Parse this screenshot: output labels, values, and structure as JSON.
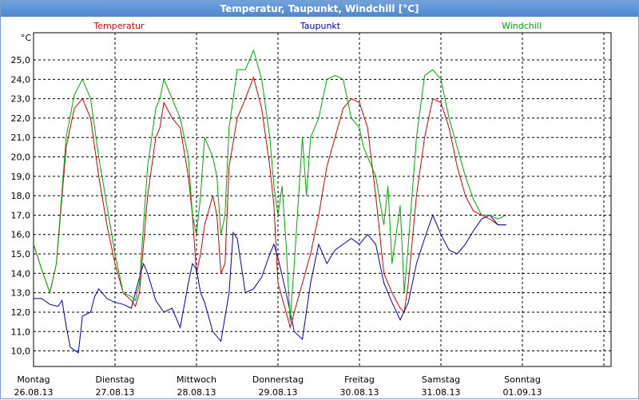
{
  "window": {
    "title": "Temperatur, Taupunkt, Windchill [°C]"
  },
  "chart_data": {
    "type": "line",
    "ylabel": "°C",
    "ylim": [
      9.2,
      26.4
    ],
    "yticks": [
      "10,0",
      "11,0",
      "12,0",
      "13,0",
      "14,0",
      "15,0",
      "16,0",
      "17,0",
      "18,0",
      "19,0",
      "20,0",
      "21,0",
      "22,0",
      "23,0",
      "24,0",
      "25,0"
    ],
    "ytick_values": [
      10,
      11,
      12,
      13,
      14,
      15,
      16,
      17,
      18,
      19,
      20,
      21,
      22,
      23,
      24,
      25
    ],
    "xlim": [
      0,
      7
    ],
    "xticks": [
      {
        "day": "Montag",
        "date": "26.08.13",
        "x": 0
      },
      {
        "day": "Dienstag",
        "date": "27.08.13",
        "x": 1
      },
      {
        "day": "Mittwoch",
        "date": "28.08.13",
        "x": 2
      },
      {
        "day": "Donnerstag",
        "date": "29.08.13",
        "x": 3
      },
      {
        "day": "Freitag",
        "date": "30.08.13",
        "x": 4
      },
      {
        "day": "Samstag",
        "date": "31.08.13",
        "x": 5
      },
      {
        "day": "Sonntag",
        "date": "01.09.13",
        "x": 6
      }
    ],
    "grid": true,
    "series": [
      {
        "name": "Temperatur",
        "color": "#d40000",
        "points": [
          [
            0,
            15.5
          ],
          [
            0.1,
            14.2
          ],
          [
            0.2,
            13.0
          ],
          [
            0.28,
            14.5
          ],
          [
            0.4,
            20.5
          ],
          [
            0.5,
            22.5
          ],
          [
            0.6,
            23.0
          ],
          [
            0.7,
            22.0
          ],
          [
            0.8,
            19.0
          ],
          [
            0.9,
            16.5
          ],
          [
            1.0,
            14.5
          ],
          [
            1.1,
            13.0
          ],
          [
            1.2,
            12.6
          ],
          [
            1.25,
            12.3
          ],
          [
            1.3,
            13.0
          ],
          [
            1.4,
            18.0
          ],
          [
            1.5,
            21.0
          ],
          [
            1.55,
            21.5
          ],
          [
            1.6,
            22.8
          ],
          [
            1.7,
            22.0
          ],
          [
            1.8,
            21.5
          ],
          [
            1.9,
            19.0
          ],
          [
            1.95,
            17.0
          ],
          [
            2.0,
            14.0
          ],
          [
            2.05,
            15.0
          ],
          [
            2.1,
            16.5
          ],
          [
            2.2,
            18.0
          ],
          [
            2.25,
            17.0
          ],
          [
            2.3,
            14.0
          ],
          [
            2.35,
            14.5
          ],
          [
            2.4,
            19.5
          ],
          [
            2.5,
            22.0
          ],
          [
            2.6,
            23.0
          ],
          [
            2.7,
            24.1
          ],
          [
            2.8,
            22.5
          ],
          [
            2.9,
            19.5
          ],
          [
            2.95,
            17.5
          ],
          [
            3.0,
            13.5
          ],
          [
            3.1,
            12.0
          ],
          [
            3.15,
            11.2
          ],
          [
            3.2,
            12.0
          ],
          [
            3.3,
            13.5
          ],
          [
            3.4,
            15.0
          ],
          [
            3.5,
            17.0
          ],
          [
            3.6,
            19.5
          ],
          [
            3.7,
            21.0
          ],
          [
            3.8,
            22.5
          ],
          [
            3.9,
            23.0
          ],
          [
            4.0,
            22.8
          ],
          [
            4.1,
            21.5
          ],
          [
            4.2,
            18.0
          ],
          [
            4.3,
            14.0
          ],
          [
            4.4,
            13.0
          ],
          [
            4.5,
            12.2
          ],
          [
            4.55,
            12.0
          ],
          [
            4.6,
            13.5
          ],
          [
            4.7,
            18.0
          ],
          [
            4.8,
            21.0
          ],
          [
            4.9,
            23.0
          ],
          [
            5.0,
            22.8
          ],
          [
            5.1,
            21.5
          ],
          [
            5.2,
            19.5
          ],
          [
            5.3,
            18.0
          ],
          [
            5.4,
            17.2
          ],
          [
            5.5,
            17.0
          ],
          [
            5.6,
            16.8
          ],
          [
            5.7,
            16.5
          ],
          [
            5.8,
            16.5
          ]
        ]
      },
      {
        "name": "Taupunkt",
        "color": "#0000aa",
        "points": [
          [
            0,
            12.7
          ],
          [
            0.1,
            12.7
          ],
          [
            0.2,
            12.4
          ],
          [
            0.3,
            12.3
          ],
          [
            0.35,
            12.6
          ],
          [
            0.4,
            11.3
          ],
          [
            0.45,
            10.2
          ],
          [
            0.55,
            9.9
          ],
          [
            0.6,
            11.8
          ],
          [
            0.7,
            12.0
          ],
          [
            0.75,
            12.8
          ],
          [
            0.8,
            13.2
          ],
          [
            0.9,
            12.7
          ],
          [
            1.0,
            12.5
          ],
          [
            1.1,
            12.4
          ],
          [
            1.2,
            12.2
          ],
          [
            1.3,
            13.8
          ],
          [
            1.35,
            14.5
          ],
          [
            1.4,
            14.0
          ],
          [
            1.5,
            12.6
          ],
          [
            1.6,
            12.0
          ],
          [
            1.7,
            12.2
          ],
          [
            1.8,
            11.2
          ],
          [
            1.9,
            13.5
          ],
          [
            1.95,
            14.5
          ],
          [
            2.0,
            14.2
          ],
          [
            2.05,
            13.0
          ],
          [
            2.1,
            12.5
          ],
          [
            2.2,
            11.0
          ],
          [
            2.3,
            10.5
          ],
          [
            2.4,
            13.0
          ],
          [
            2.45,
            16.1
          ],
          [
            2.5,
            15.8
          ],
          [
            2.6,
            13.0
          ],
          [
            2.7,
            13.2
          ],
          [
            2.8,
            13.8
          ],
          [
            2.9,
            15.0
          ],
          [
            2.95,
            15.5
          ],
          [
            3.0,
            14.8
          ],
          [
            3.1,
            13.0
          ],
          [
            3.2,
            11.0
          ],
          [
            3.3,
            10.6
          ],
          [
            3.4,
            13.5
          ],
          [
            3.5,
            15.5
          ],
          [
            3.6,
            14.5
          ],
          [
            3.7,
            15.2
          ],
          [
            3.8,
            15.5
          ],
          [
            3.9,
            15.8
          ],
          [
            4.0,
            15.5
          ],
          [
            4.1,
            16.0
          ],
          [
            4.2,
            15.5
          ],
          [
            4.3,
            13.5
          ],
          [
            4.4,
            12.5
          ],
          [
            4.5,
            11.6
          ],
          [
            4.6,
            12.5
          ],
          [
            4.7,
            14.5
          ],
          [
            4.8,
            15.8
          ],
          [
            4.9,
            17.0
          ],
          [
            5.0,
            16.0
          ],
          [
            5.1,
            15.2
          ],
          [
            5.2,
            15.0
          ],
          [
            5.3,
            15.5
          ],
          [
            5.4,
            16.2
          ],
          [
            5.5,
            16.8
          ],
          [
            5.6,
            17.0
          ],
          [
            5.7,
            16.5
          ],
          [
            5.8,
            16.5
          ]
        ]
      },
      {
        "name": "Windchill",
        "color": "#00aa00",
        "points": [
          [
            0,
            15.5
          ],
          [
            0.1,
            14.2
          ],
          [
            0.2,
            13.0
          ],
          [
            0.28,
            14.5
          ],
          [
            0.4,
            21.0
          ],
          [
            0.5,
            23.2
          ],
          [
            0.6,
            24.0
          ],
          [
            0.7,
            23.0
          ],
          [
            0.8,
            20.0
          ],
          [
            0.9,
            17.5
          ],
          [
            1.0,
            15.0
          ],
          [
            1.1,
            13.0
          ],
          [
            1.2,
            12.8
          ],
          [
            1.25,
            12.6
          ],
          [
            1.3,
            13.5
          ],
          [
            1.4,
            19.5
          ],
          [
            1.5,
            22.5
          ],
          [
            1.55,
            23.0
          ],
          [
            1.6,
            24.0
          ],
          [
            1.7,
            23.0
          ],
          [
            1.8,
            22.0
          ],
          [
            1.9,
            20.0
          ],
          [
            1.95,
            17.0
          ],
          [
            2.0,
            16.0
          ],
          [
            2.05,
            18.0
          ],
          [
            2.1,
            21.0
          ],
          [
            2.2,
            20.0
          ],
          [
            2.25,
            19.0
          ],
          [
            2.3,
            16.0
          ],
          [
            2.35,
            17.0
          ],
          [
            2.4,
            21.5
          ],
          [
            2.5,
            24.5
          ],
          [
            2.6,
            24.5
          ],
          [
            2.7,
            25.5
          ],
          [
            2.8,
            24.0
          ],
          [
            2.9,
            21.0
          ],
          [
            2.95,
            18.5
          ],
          [
            3.0,
            17.0
          ],
          [
            3.05,
            18.5
          ],
          [
            3.1,
            15.5
          ],
          [
            3.15,
            11.5
          ],
          [
            3.2,
            14.5
          ],
          [
            3.3,
            21.0
          ],
          [
            3.35,
            18.0
          ],
          [
            3.4,
            21.0
          ],
          [
            3.5,
            22.0
          ],
          [
            3.6,
            24.0
          ],
          [
            3.7,
            24.2
          ],
          [
            3.8,
            24.0
          ],
          [
            3.9,
            22.0
          ],
          [
            4.0,
            21.5
          ],
          [
            4.05,
            20.5
          ],
          [
            4.1,
            20.0
          ],
          [
            4.2,
            19.0
          ],
          [
            4.3,
            16.5
          ],
          [
            4.35,
            18.5
          ],
          [
            4.4,
            14.5
          ],
          [
            4.5,
            17.5
          ],
          [
            4.55,
            13.0
          ],
          [
            4.6,
            15.5
          ],
          [
            4.7,
            21.0
          ],
          [
            4.8,
            24.2
          ],
          [
            4.9,
            24.5
          ],
          [
            5.0,
            24.0
          ],
          [
            5.1,
            22.0
          ],
          [
            5.2,
            20.5
          ],
          [
            5.3,
            19.0
          ],
          [
            5.4,
            17.8
          ],
          [
            5.5,
            17.0
          ],
          [
            5.6,
            17.0
          ],
          [
            5.7,
            16.8
          ],
          [
            5.8,
            17.0
          ]
        ]
      }
    ]
  }
}
